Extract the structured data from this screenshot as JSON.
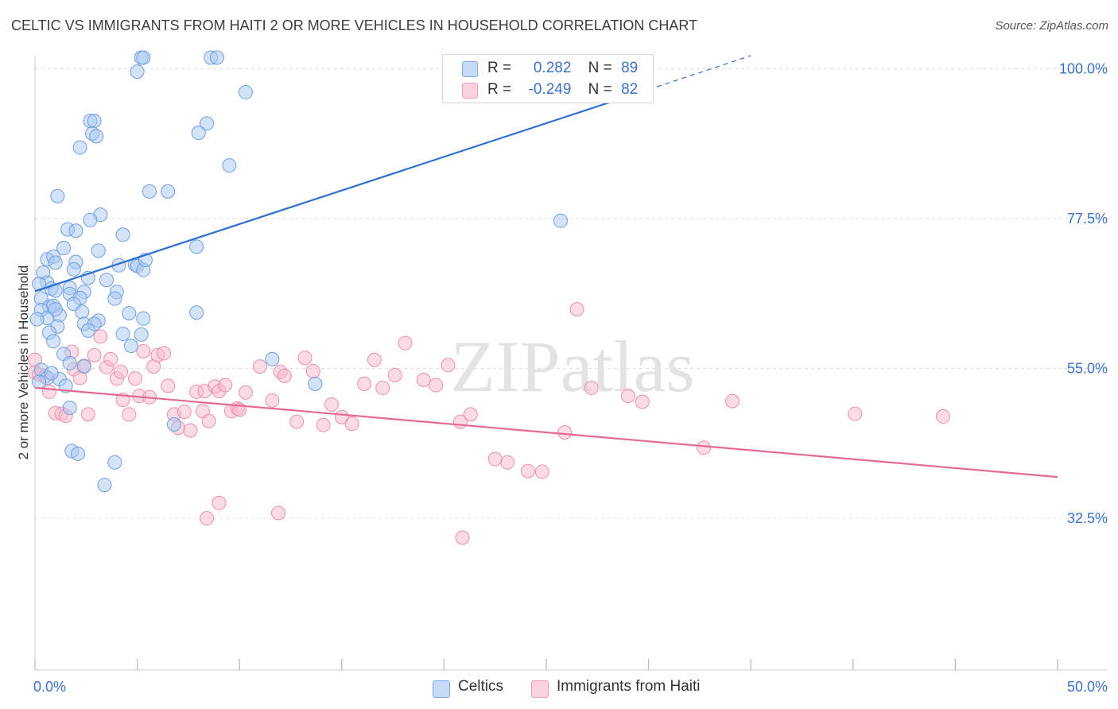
{
  "header": {
    "title": "CELTIC VS IMMIGRANTS FROM HAITI 2 OR MORE VEHICLES IN HOUSEHOLD CORRELATION CHART",
    "source": "Source: ZipAtlas.com"
  },
  "watermark": "ZIPatlas",
  "legend": {
    "rows": [
      {
        "r_label": "R =",
        "r_value": "0.282",
        "n_label": "N =",
        "n_value": "89",
        "color": "#a9c8f2"
      },
      {
        "r_label": "R =",
        "r_value": "-0.249",
        "n_label": "N =",
        "n_value": "82",
        "color": "#f7b9cb"
      }
    ]
  },
  "bottom_legend": {
    "items": [
      {
        "label": "Celtics",
        "color": "#a9c8f2"
      },
      {
        "label": "Immigrants from Haiti",
        "color": "#f7b9cb"
      }
    ]
  },
  "colors": {
    "celtic_fill": "#a9c8f2",
    "celtic_stroke": "#6e9fe0",
    "celtic_line": "#2f6fd1",
    "haiti_fill": "#f7b9cb",
    "haiti_stroke": "#ee8eaa",
    "haiti_line": "#e46a94",
    "tick_label": "#3a72c8",
    "grid": "#dcdcdc"
  },
  "chart_data": {
    "type": "scatter",
    "title": "CELTIC VS IMMIGRANTS FROM HAITI 2 OR MORE VEHICLES IN HOUSEHOLD CORRELATION CHART",
    "xlabel": "",
    "ylabel": "2 or more Vehicles in Household",
    "xlim": [
      0,
      50
    ],
    "ylim": [
      9.7,
      102
    ],
    "x_tick_labels": [
      "0.0%",
      "50.0%"
    ],
    "y_ticks": [
      32.5,
      55.0,
      77.5,
      100.0
    ],
    "y_tick_labels": [
      "32.5%",
      "55.0%",
      "77.5%",
      "100.0%"
    ],
    "grid": true,
    "legend_position": "top-center",
    "series": [
      {
        "name": "Celtics",
        "R": 0.282,
        "N": 89,
        "trend": {
          "x": [
            0,
            30
          ],
          "y": [
            66.6,
            96.9
          ],
          "dashed_extension_to": [
            35,
            102
          ]
        },
        "points": [
          [
            5.2,
            101.7
          ],
          [
            5.3,
            101.7
          ],
          [
            8.6,
            101.7
          ],
          [
            8.9,
            101.7
          ],
          [
            5.0,
            99.6
          ],
          [
            10.3,
            96.5
          ],
          [
            2.7,
            92.2
          ],
          [
            2.9,
            92.2
          ],
          [
            8.4,
            91.8
          ],
          [
            2.8,
            90.3
          ],
          [
            3.0,
            89.9
          ],
          [
            8.0,
            90.4
          ],
          [
            2.2,
            88.2
          ],
          [
            9.5,
            85.5
          ],
          [
            5.6,
            81.6
          ],
          [
            6.5,
            81.6
          ],
          [
            1.1,
            80.9
          ],
          [
            3.2,
            78.1
          ],
          [
            2.7,
            77.3
          ],
          [
            25.7,
            77.2
          ],
          [
            1.6,
            75.9
          ],
          [
            2.0,
            75.7
          ],
          [
            4.3,
            75.1
          ],
          [
            7.9,
            73.3
          ],
          [
            1.4,
            73.1
          ],
          [
            3.1,
            72.7
          ],
          [
            0.6,
            71.4
          ],
          [
            0.9,
            71.8
          ],
          [
            2.0,
            71.0
          ],
          [
            1.0,
            70.9
          ],
          [
            4.1,
            70.5
          ],
          [
            4.9,
            70.6
          ],
          [
            5.0,
            70.4
          ],
          [
            1.9,
            69.9
          ],
          [
            5.3,
            69.8
          ],
          [
            0.4,
            69.4
          ],
          [
            2.6,
            68.6
          ],
          [
            3.5,
            68.3
          ],
          [
            0.6,
            67.9
          ],
          [
            0.2,
            67.7
          ],
          [
            0.8,
            67.0
          ],
          [
            1.7,
            67.1
          ],
          [
            1.0,
            66.7
          ],
          [
            2.4,
            66.5
          ],
          [
            4.0,
            66.5
          ],
          [
            1.7,
            66.2
          ],
          [
            2.2,
            65.6
          ],
          [
            0.3,
            65.5
          ],
          [
            3.9,
            65.5
          ],
          [
            1.9,
            64.7
          ],
          [
            0.7,
            64.3
          ],
          [
            0.9,
            64.4
          ],
          [
            0.3,
            63.8
          ],
          [
            2.3,
            63.5
          ],
          [
            7.9,
            63.4
          ],
          [
            0.6,
            62.6
          ],
          [
            1.2,
            63.0
          ],
          [
            3.1,
            62.2
          ],
          [
            5.3,
            62.5
          ],
          [
            0.1,
            62.4
          ],
          [
            2.4,
            61.7
          ],
          [
            2.9,
            61.7
          ],
          [
            1.1,
            61.3
          ],
          [
            0.7,
            60.4
          ],
          [
            5.2,
            60.1
          ],
          [
            4.3,
            60.2
          ],
          [
            0.9,
            59.1
          ],
          [
            4.7,
            58.4
          ],
          [
            1.4,
            57.2
          ],
          [
            11.6,
            56.4
          ],
          [
            2.4,
            55.3
          ],
          [
            1.7,
            55.8
          ],
          [
            0.3,
            54.8
          ],
          [
            0.6,
            53.6
          ],
          [
            0.2,
            53.0
          ],
          [
            1.2,
            53.4
          ],
          [
            1.5,
            52.4
          ],
          [
            13.7,
            52.7
          ],
          [
            1.7,
            49.1
          ],
          [
            6.8,
            46.6
          ],
          [
            1.8,
            42.6
          ],
          [
            2.1,
            42.2
          ],
          [
            3.9,
            40.9
          ],
          [
            3.4,
            37.5
          ],
          [
            0.8,
            54.3
          ],
          [
            1.0,
            63.9
          ],
          [
            2.6,
            60.7
          ],
          [
            4.6,
            63.3
          ],
          [
            5.4,
            71.3
          ]
        ]
      },
      {
        "name": "Immigrants from Haiti",
        "R": -0.249,
        "N": 82,
        "trend": {
          "x": [
            0,
            50
          ],
          "y": [
            52.1,
            38.7
          ]
        },
        "points": [
          [
            0.0,
            56.3
          ],
          [
            0.0,
            54.4
          ],
          [
            0.2,
            54.1
          ],
          [
            0.5,
            53.8
          ],
          [
            0.7,
            51.5
          ],
          [
            1.0,
            48.3
          ],
          [
            1.3,
            48.2
          ],
          [
            1.5,
            47.9
          ],
          [
            1.8,
            57.5
          ],
          [
            1.9,
            54.9
          ],
          [
            2.2,
            53.6
          ],
          [
            2.4,
            55.4
          ],
          [
            2.6,
            48.1
          ],
          [
            2.9,
            57.0
          ],
          [
            3.2,
            59.8
          ],
          [
            3.5,
            55.2
          ],
          [
            3.7,
            56.4
          ],
          [
            4.0,
            53.5
          ],
          [
            4.2,
            54.5
          ],
          [
            4.3,
            50.3
          ],
          [
            4.6,
            48.1
          ],
          [
            4.9,
            53.5
          ],
          [
            5.1,
            50.9
          ],
          [
            5.3,
            57.6
          ],
          [
            5.6,
            50.7
          ],
          [
            5.8,
            55.3
          ],
          [
            6.0,
            57.0
          ],
          [
            6.3,
            57.3
          ],
          [
            6.5,
            52.4
          ],
          [
            6.8,
            48.1
          ],
          [
            7.0,
            46.1
          ],
          [
            7.3,
            48.5
          ],
          [
            7.6,
            45.7
          ],
          [
            7.9,
            51.5
          ],
          [
            8.2,
            48.6
          ],
          [
            8.3,
            51.6
          ],
          [
            8.5,
            47.1
          ],
          [
            8.8,
            52.3
          ],
          [
            9.0,
            51.6
          ],
          [
            9.3,
            52.5
          ],
          [
            9.6,
            48.6
          ],
          [
            9.9,
            49.0
          ],
          [
            10.0,
            48.8
          ],
          [
            10.3,
            51.4
          ],
          [
            11.0,
            55.3
          ],
          [
            11.6,
            50.2
          ],
          [
            12.0,
            54.5
          ],
          [
            12.2,
            53.9
          ],
          [
            12.8,
            47.0
          ],
          [
            13.2,
            56.6
          ],
          [
            13.6,
            54.6
          ],
          [
            14.1,
            46.5
          ],
          [
            14.5,
            49.6
          ],
          [
            15.0,
            47.7
          ],
          [
            15.5,
            46.7
          ],
          [
            16.1,
            52.7
          ],
          [
            16.6,
            56.3
          ],
          [
            17.0,
            52.1
          ],
          [
            17.6,
            54.0
          ],
          [
            18.1,
            58.8
          ],
          [
            19.0,
            53.3
          ],
          [
            19.6,
            52.5
          ],
          [
            20.2,
            55.5
          ],
          [
            20.8,
            47.0
          ],
          [
            21.3,
            48.1
          ],
          [
            22.5,
            41.4
          ],
          [
            23.1,
            40.9
          ],
          [
            24.1,
            39.6
          ],
          [
            24.8,
            39.5
          ],
          [
            25.9,
            45.4
          ],
          [
            26.5,
            63.9
          ],
          [
            27.2,
            52.1
          ],
          [
            29.0,
            50.9
          ],
          [
            29.7,
            50.0
          ],
          [
            32.7,
            43.1
          ],
          [
            34.1,
            50.1
          ],
          [
            40.1,
            48.2
          ],
          [
            44.4,
            47.8
          ],
          [
            8.4,
            32.5
          ],
          [
            9.0,
            34.8
          ],
          [
            11.9,
            33.3
          ],
          [
            20.9,
            29.6
          ]
        ]
      }
    ]
  }
}
